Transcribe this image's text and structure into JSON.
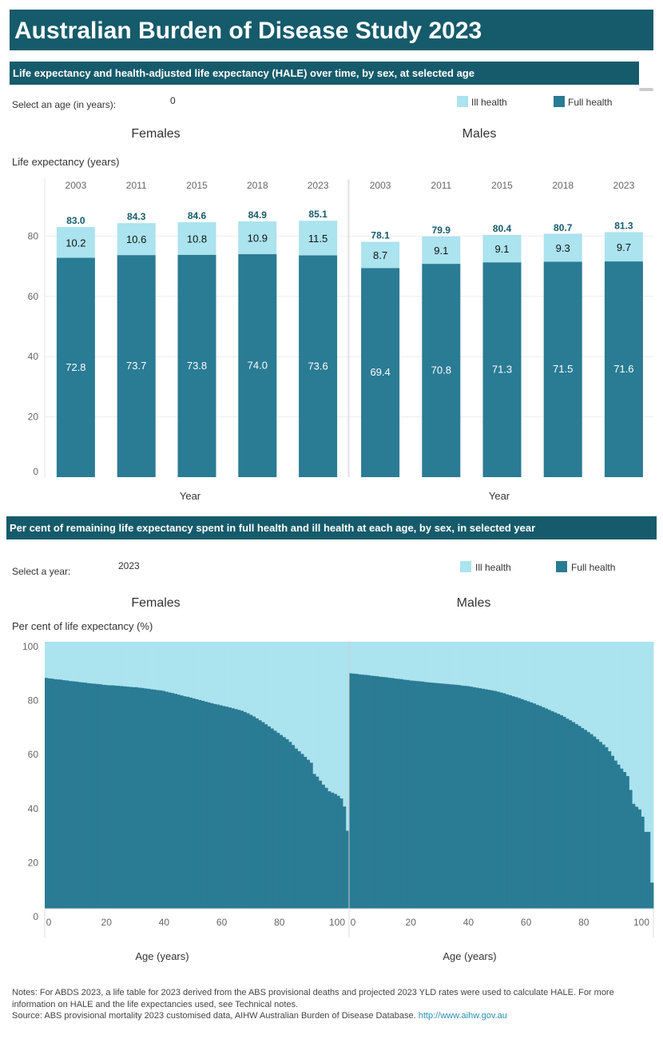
{
  "title": "Australian Burden of Disease Study 2023",
  "colors": {
    "banner": "#165b6b",
    "full_health": "#2a7b94",
    "ill_health": "#abe3ee",
    "total_label": "#165b6b"
  },
  "section1": {
    "heading": "Life expectancy and health-adjusted life expectancy (HALE) over time, by sex, at selected age",
    "filter_label": "Select an age (in years):",
    "filter_value": "0",
    "legend": {
      "ill": "Ill health",
      "full": "Full health"
    }
  },
  "section2": {
    "heading": "Per cent of remaining life expectancy spent in full health and ill health at each age, by sex, in selected year",
    "filter_label": "Select a year:",
    "filter_value": "2023",
    "legend": {
      "ill": "Ill health",
      "full": "Full health"
    }
  },
  "chart_data": [
    {
      "type": "bar",
      "stacked": true,
      "ylabel": "Life expectancy (years)",
      "xlabel": "Year",
      "ylim": [
        0,
        100
      ],
      "yticks": [
        0,
        20,
        40,
        60,
        80
      ],
      "grid": true,
      "legend_position": "top-right",
      "categories": [
        "2003",
        "2011",
        "2015",
        "2018",
        "2023"
      ],
      "panels": [
        {
          "title": "Females",
          "full_health": [
            72.8,
            73.7,
            73.8,
            74.0,
            73.6
          ],
          "ill_health": [
            10.2,
            10.6,
            10.8,
            10.9,
            11.5
          ],
          "total": [
            83.0,
            84.3,
            84.6,
            84.9,
            85.1
          ]
        },
        {
          "title": "Males",
          "full_health": [
            69.4,
            70.8,
            71.3,
            71.5,
            71.6
          ],
          "ill_health": [
            8.7,
            9.1,
            9.1,
            9.3,
            9.7
          ],
          "total": [
            78.1,
            79.9,
            80.4,
            80.7,
            81.3
          ]
        }
      ],
      "series": [
        {
          "name": "Ill health"
        },
        {
          "name": "Full health"
        }
      ]
    },
    {
      "type": "bar",
      "stacked": true,
      "ylabel": "Per cent of life expectancy (%)",
      "xlabel": "Age (years)",
      "ylim": [
        0,
        100
      ],
      "yticks": [
        0,
        20,
        40,
        60,
        80,
        100
      ],
      "xticks": [
        0,
        20,
        40,
        60,
        80,
        100
      ],
      "xlim": [
        0,
        100
      ],
      "legend_position": "top-right",
      "panels": [
        {
          "title": "Females",
          "full_health_pct": [
            86.5,
            86.3,
            86.2,
            86.0,
            85.9,
            85.8,
            85.6,
            85.5,
            85.3,
            85.2,
            85.1,
            84.9,
            84.8,
            84.7,
            84.5,
            84.4,
            84.3,
            84.2,
            84.1,
            83.9,
            83.8,
            83.7,
            83.7,
            83.6,
            83.5,
            83.4,
            83.3,
            83.2,
            83.1,
            83.0,
            83.0,
            82.8,
            82.7,
            82.5,
            82.4,
            82.2,
            82.1,
            81.9,
            81.8,
            81.6,
            81.3,
            81.0,
            80.8,
            80.5,
            80.2,
            79.9,
            79.6,
            79.4,
            79.1,
            78.8,
            78.5,
            78.2,
            77.9,
            77.6,
            77.3,
            77.0,
            76.7,
            76.5,
            76.2,
            75.9,
            75.7,
            75.4,
            75.1,
            74.8,
            74.5,
            74.2,
            73.7,
            73.2,
            72.6,
            72.0,
            71.3,
            70.6,
            69.9,
            69.1,
            68.3,
            67.5,
            66.7,
            65.9,
            65.1,
            64.3,
            63.5,
            62.5,
            61.3,
            60.0,
            59.0,
            58.0,
            56.9,
            55.8,
            54.7,
            50.5,
            49.5,
            48.0,
            46.5,
            45.3,
            44.0,
            43.5,
            43.0,
            42.3,
            41.3,
            38.3,
            29.2
          ]
        },
        {
          "title": "Males",
          "full_health_pct": [
            88.2,
            88.1,
            88.0,
            87.8,
            87.7,
            87.6,
            87.5,
            87.3,
            87.2,
            87.1,
            86.9,
            86.8,
            86.7,
            86.5,
            86.4,
            86.2,
            86.1,
            86.0,
            85.8,
            85.7,
            85.5,
            85.4,
            85.3,
            85.2,
            85.1,
            84.9,
            84.8,
            84.7,
            84.6,
            84.5,
            84.4,
            84.3,
            84.2,
            84.1,
            84.0,
            83.9,
            83.8,
            83.6,
            83.5,
            83.4,
            83.2,
            83.0,
            82.8,
            82.6,
            82.4,
            82.2,
            82.0,
            81.8,
            81.6,
            81.3,
            81.0,
            80.7,
            80.3,
            80.0,
            79.6,
            79.3,
            78.9,
            78.5,
            78.1,
            77.7,
            77.3,
            76.9,
            76.4,
            76.0,
            75.5,
            75.0,
            74.5,
            74.0,
            73.5,
            73.0,
            72.5,
            71.9,
            71.2,
            70.6,
            69.9,
            69.2,
            68.5,
            67.7,
            67.0,
            66.2,
            65.4,
            64.5,
            63.5,
            62.5,
            61.5,
            60.5,
            59.0,
            57.3,
            55.5,
            54.0,
            52.5,
            51.2,
            49.7,
            44.5,
            39.3,
            38.2,
            37.2,
            34.5,
            28.8,
            28.8,
            9.8
          ]
        }
      ],
      "series": [
        {
          "name": "Ill health"
        },
        {
          "name": "Full health"
        }
      ]
    }
  ],
  "notes": {
    "line1": "Notes: For ABDS 2023, a life table for 2023 derived from the ABS provisional deaths and projected 2023 YLD rates were used to calculate HALE. For more",
    "line2": "information on HALE and the life expectancies used, see Technical notes.",
    "source": "Source: ABS provisional mortality 2023 customised data, AIHW Australian Burden of Disease Database.",
    "link": "http://www.aihw.gov.au"
  }
}
